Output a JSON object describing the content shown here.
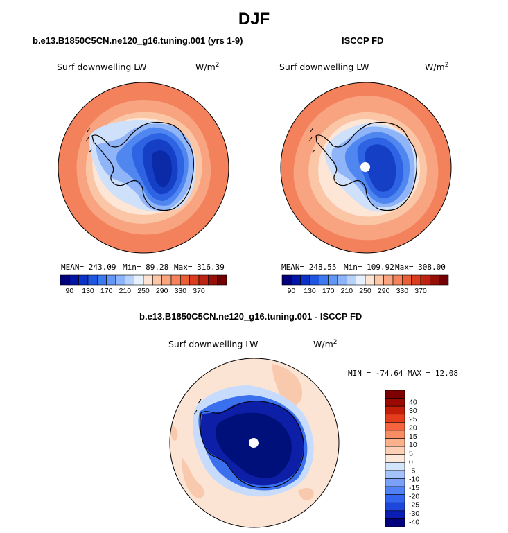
{
  "figure": {
    "title": "DJF",
    "panels": [
      {
        "title": "b.e13.B1850C5CN.ne120_g16.tuning.001 (yrs 1-9)",
        "variable": "Surf downwelling LW",
        "units": "W/m",
        "units_sup": "2",
        "stats": {
          "mean": "MEAN= 243.09",
          "min": "Min=  89.28",
          "max": "Max= 316.39"
        }
      },
      {
        "title": "ISCCP FD",
        "variable": "Surf downwelling LW",
        "units": "W/m",
        "units_sup": "2",
        "stats": {
          "mean": "MEAN= 248.55",
          "min": "Min= 109.92",
          "max": "Max= 308.00"
        }
      },
      {
        "title": "b.e13.B1850C5CN.ne120_g16.tuning.001 - ISCCP FD",
        "variable": "Surf downwelling LW",
        "units": "W/m",
        "units_sup": "2",
        "stats": {
          "minmax": "MIN = -74.64 MAX =  12.08"
        }
      }
    ],
    "colorbar_abs": {
      "colors": [
        "#00007d",
        "#0014a5",
        "#0a32c8",
        "#1e55e1",
        "#3c78f0",
        "#6496f5",
        "#8cb4fa",
        "#b9d2fc",
        "#e6f0fe",
        "#fde4d2",
        "#fcc7a8",
        "#faa57f",
        "#f5825a",
        "#eb5f37",
        "#dc3c1e",
        "#bc2311",
        "#961008",
        "#700003"
      ],
      "tick_labels": [
        "90",
        "130",
        "170",
        "210",
        "250",
        "290",
        "330",
        "370"
      ]
    },
    "colorbar_diff": {
      "colors": [
        "#00007d",
        "#0a1eb4",
        "#1e46dc",
        "#3264f0",
        "#5082f5",
        "#7aa0f8",
        "#a5c3fb",
        "#d3e4fd",
        "#fde9dc",
        "#fdcfb4",
        "#fbb28c",
        "#f88c64",
        "#f5643c",
        "#e63c1e",
        "#c31e0a",
        "#9b0a00",
        "#7d0000"
      ],
      "tick_labels": [
        "40",
        "30",
        "25",
        "20",
        "15",
        "10",
        "5",
        "0",
        "-5",
        "-10",
        "-15",
        "-20",
        "-25",
        "-30",
        "-40"
      ]
    },
    "map_colors": {
      "ocean_warm": "#f3825c",
      "ocean_mid": "#f8a481",
      "ring_light": "#fbc6a6",
      "ring_pale": "#fde6d6",
      "sea_ice": "#cfe0fb",
      "ant_edge": "#8fb4f7",
      "ant_mid": "#5086f0",
      "ant_inner": "#2e63e3",
      "ant_core": "#1540c6",
      "ant_deep": "#0a2aa8",
      "diff_bg": "#fbe4d4",
      "diff_warm": "#f9c9ad",
      "diff_blue_pale": "#c7dcfc",
      "diff_blue": "#3a6fee",
      "diff_deep": "#0c1fa6",
      "diff_darkest": "#00107a",
      "coast": "#000000"
    }
  }
}
